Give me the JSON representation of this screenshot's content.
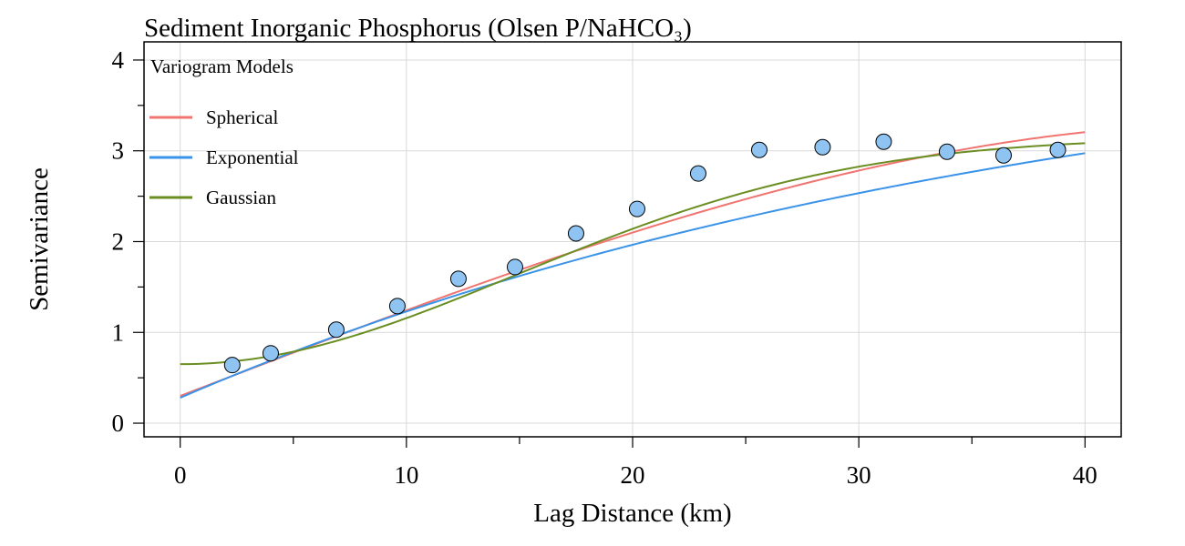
{
  "chart_data": {
    "type": "scatter",
    "title": "Sediment Inorganic Phosphorus (Olsen P/NaHCO₃)",
    "xlabel": "Lag Distance (km)",
    "ylabel": "Semivariance",
    "xlim": [
      -1.6,
      41.6
    ],
    "ylim": [
      -0.15,
      4.2
    ],
    "x_ticks": [
      0,
      10,
      20,
      30,
      40
    ],
    "x_minor_ticks": [
      5,
      15,
      25,
      35
    ],
    "y_ticks": [
      0,
      1,
      2,
      3,
      4
    ],
    "y_minor_ticks": [
      0.5,
      1.5,
      2.5,
      3.5
    ],
    "grid": true,
    "legend": {
      "title": "Variogram Models",
      "position": "top-left",
      "entries": [
        {
          "label": "Spherical",
          "color": "#F07470"
        },
        {
          "label": "Exponential",
          "color": "#3A93E8"
        },
        {
          "label": "Gaussian",
          "color": "#6B8E23"
        }
      ]
    },
    "points": {
      "color": "#8EC3F2",
      "edge_color": "#000000",
      "x": [
        2.3,
        4.0,
        6.9,
        9.6,
        12.3,
        14.8,
        17.5,
        20.2,
        22.9,
        25.6,
        28.4,
        31.1,
        33.9,
        36.4,
        38.8
      ],
      "y": [
        0.64,
        0.77,
        1.03,
        1.29,
        1.59,
        1.72,
        2.09,
        2.36,
        2.75,
        3.01,
        3.04,
        3.1,
        2.99,
        2.95,
        3.01
      ]
    },
    "models": [
      {
        "name": "Spherical",
        "color": "#F07470",
        "nugget": 0.3,
        "psill": 3.0,
        "range": 47
      },
      {
        "name": "Exponential",
        "color": "#3A93E8",
        "nugget": 0.28,
        "psill": 4.2,
        "range": 39
      },
      {
        "name": "Gaussian",
        "color": "#6B8E23",
        "nugget": 0.65,
        "psill": 2.5,
        "range": 21
      }
    ]
  }
}
